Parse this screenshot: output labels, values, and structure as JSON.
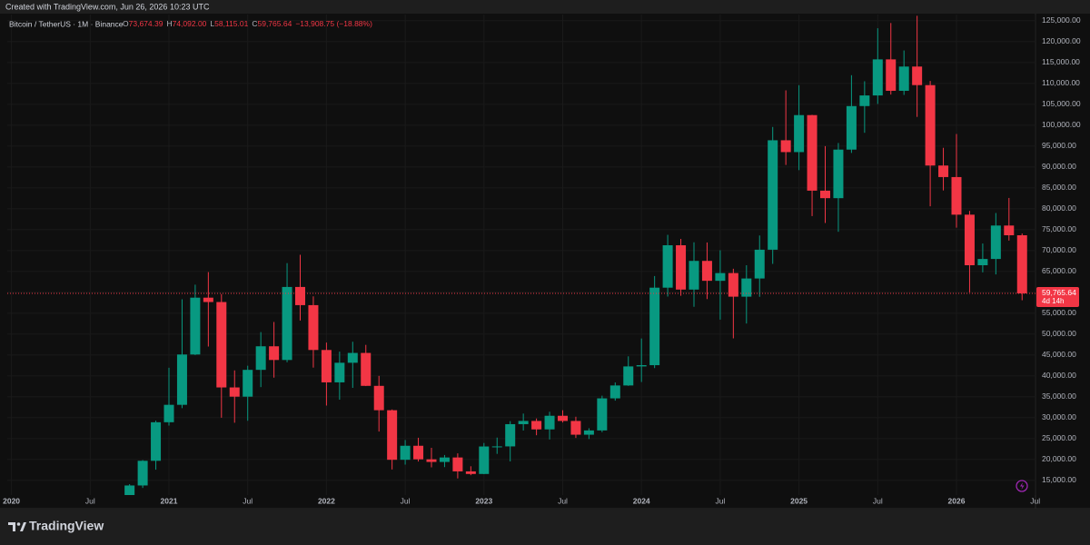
{
  "top_bar": "Created with TradingView.com, Jun 26, 2026 10:23 UTC",
  "footer_brand": "TradingView",
  "chart_data": {
    "type": "candlestick",
    "symbol": "Bitcoin / TetherUS · 1M · Binance",
    "legend_items": [
      {
        "key": "O",
        "value": "73,674.39"
      },
      {
        "key": "H",
        "value": "74,092.00"
      },
      {
        "key": "L",
        "value": "58,115.01"
      },
      {
        "key": "C",
        "value": "59,765.64"
      }
    ],
    "change": "−13,908.75 (−18.88%)",
    "up_color": "#089981",
    "down_color": "#f23645",
    "grid": true,
    "categories": [
      "2020",
      null,
      null,
      null,
      null,
      null,
      "Jul",
      null,
      null,
      null,
      null,
      null,
      "2021",
      null,
      null,
      null,
      null,
      null,
      "Jul",
      null,
      null,
      null,
      null,
      null,
      "2022",
      null,
      null,
      null,
      null,
      null,
      "Jul",
      null,
      null,
      null,
      null,
      null,
      "2023",
      null,
      null,
      null,
      null,
      null,
      "Jul",
      null,
      null,
      null,
      null,
      null,
      "2024",
      null,
      null,
      null,
      null,
      null,
      "Jul",
      null,
      null,
      null,
      null,
      null,
      "2025",
      null,
      null,
      null,
      null,
      null,
      "Jul",
      null,
      null,
      null,
      null,
      null,
      "2026",
      null,
      null,
      null,
      null,
      null,
      "Jul"
    ],
    "open": [
      null,
      null,
      null,
      null,
      null,
      null,
      null,
      null,
      null,
      10776,
      13791,
      19695,
      28923,
      33093,
      45135,
      58740,
      57694,
      37253,
      35046,
      41461,
      47101,
      43824,
      61300,
      56950,
      46216,
      38467,
      43160,
      45510,
      37630,
      31801,
      19942,
      23293,
      20050,
      19423,
      20490,
      17164,
      16542,
      23125,
      23142,
      28465,
      29233,
      27210,
      30472,
      29232,
      25941,
      26963,
      34640,
      37724,
      42284,
      42580,
      61131,
      71280,
      60672,
      67540,
      62772,
      64628,
      58974,
      63327,
      70215,
      96407,
      93576,
      102429,
      84350,
      82550,
      94172,
      104592,
      107135,
      115765,
      108247,
      114049,
      109608,
      90360,
      87600,
      78600,
      66500,
      68000,
      76000,
      73674.39,
      null
    ],
    "high": [
      null,
      null,
      null,
      null,
      null,
      null,
      null,
      null,
      null,
      14100,
      19863,
      29300,
      41950,
      58352,
      61844,
      64854,
      59592,
      41330,
      42448,
      50500,
      52920,
      67000,
      69000,
      59053,
      47990,
      45821,
      48190,
      47444,
      40023,
      31982,
      24668,
      25211,
      22799,
      21085,
      21480,
      18387,
      23960,
      25250,
      29184,
      31000,
      29820,
      31431,
      31804,
      30244,
      27483,
      35280,
      38450,
      44700,
      48969,
      63913,
      73777,
      72797,
      71979,
      71949,
      70079,
      65660,
      66498,
      73620,
      99588,
      108353,
      109588,
      102500,
      95000,
      95758,
      111980,
      110530,
      123218,
      124474,
      117900,
      126200,
      110600,
      94600,
      97900,
      79500,
      71700,
      79000,
      82600,
      74092,
      null
    ],
    "low": [
      null,
      null,
      null,
      null,
      null,
      null,
      null,
      null,
      null,
      10375,
      13195,
      17572,
      28130,
      32296,
      45000,
      47045,
      30000,
      28805,
      29278,
      37332,
      39600,
      43283,
      53256,
      42000,
      32917,
      34322,
      37155,
      37578,
      26700,
      17622,
      18782,
      19520,
      18125,
      18190,
      15476,
      16256,
      16500,
      21351,
      19549,
      26942,
      25811,
      24800,
      28861,
      25166,
      24901,
      26538,
      34097,
      37629,
      38555,
      41884,
      59005,
      59191,
      56552,
      58402,
      53485,
      49000,
      52550,
      58946,
      66835,
      90500,
      89256,
      78258,
      76606,
      74508,
      93377,
      98200,
      105100,
      107350,
      107255,
      102000,
      80600,
      84400,
      75500,
      60000,
      64800,
      64300,
      72400,
      58115.01,
      null
    ],
    "close": [
      null,
      null,
      null,
      null,
      null,
      null,
      null,
      null,
      null,
      13791,
      19695,
      28923,
      33093,
      45135,
      58740,
      57694,
      37253,
      35046,
      41461,
      47101,
      43824,
      61300,
      56950,
      46216,
      38467,
      43160,
      45510,
      37630,
      31801,
      19942,
      23293,
      20050,
      19423,
      20490,
      17164,
      16542,
      23125,
      23142,
      28465,
      29233,
      27210,
      30472,
      29232,
      25941,
      26963,
      34640,
      37724,
      42284,
      42580,
      61131,
      71280,
      60672,
      67540,
      62772,
      64628,
      58974,
      63327,
      70215,
      96407,
      93576,
      102429,
      84350,
      82550,
      94172,
      104592,
      107135,
      115765,
      108247,
      114049,
      109608,
      90360,
      87600,
      78600,
      66500,
      68000,
      76000,
      73674.39,
      59765.64,
      null
    ],
    "ylim": [
      11500,
      126500
    ],
    "yticks": [
      {
        "value": 15000,
        "label": "15,000.00"
      },
      {
        "value": 20000,
        "label": "20,000.00"
      },
      {
        "value": 25000,
        "label": "25,000.00"
      },
      {
        "value": 30000,
        "label": "30,000.00"
      },
      {
        "value": 35000,
        "label": "35,000.00"
      },
      {
        "value": 40000,
        "label": "40,000.00"
      },
      {
        "value": 45000,
        "label": "45,000.00"
      },
      {
        "value": 50000,
        "label": "50,000.00"
      },
      {
        "value": 55000,
        "label": "55,000.00"
      },
      {
        "value": 60000,
        "label": "60,000.00"
      },
      {
        "value": 65000,
        "label": "65,000.00"
      },
      {
        "value": 70000,
        "label": "70,000.00"
      },
      {
        "value": 75000,
        "label": "75,000.00"
      },
      {
        "value": 80000,
        "label": "80,000.00"
      },
      {
        "value": 85000,
        "label": "85,000.00"
      },
      {
        "value": 90000,
        "label": "90,000.00"
      },
      {
        "value": 95000,
        "label": "95,000.00"
      },
      {
        "value": 100000,
        "label": "100,000.00"
      },
      {
        "value": 105000,
        "label": "105,000.00"
      },
      {
        "value": 110000,
        "label": "110,000.00"
      },
      {
        "value": 115000,
        "label": "115,000.00"
      },
      {
        "value": 120000,
        "label": "120,000.00"
      },
      {
        "value": 125000,
        "label": "125,000.00"
      }
    ],
    "current_price": {
      "value": 59765.64,
      "label": "59,765.64"
    },
    "countdown": "4d 14h"
  }
}
